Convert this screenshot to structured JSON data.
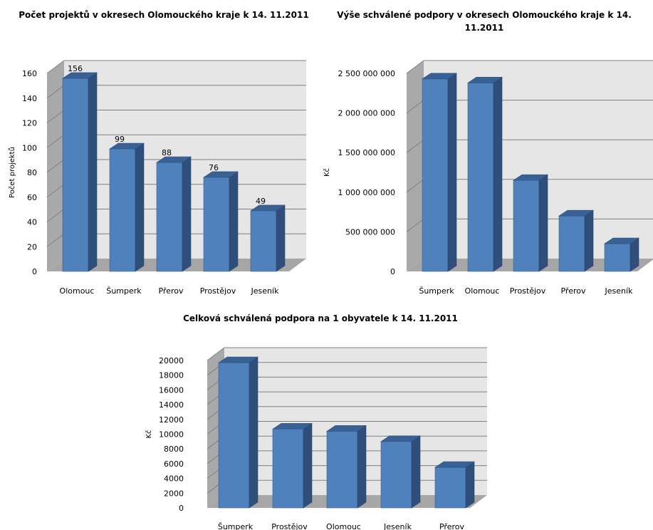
{
  "chart_data": [
    {
      "type": "bar",
      "title": "Počet projektů v okresech Olomouckého kraje k 14. 11.2011",
      "categories": [
        "Olomouc",
        "Šumperk",
        "Přerov",
        "Prostějov",
        "Jeseník"
      ],
      "values": [
        156,
        99,
        88,
        76,
        49
      ],
      "data_labels": [
        "156",
        "99",
        "88",
        "76",
        "49"
      ],
      "ylabel": "Počet projektů",
      "xlabel": "",
      "ylim": [
        0,
        160
      ],
      "yticks": [
        0,
        20,
        40,
        60,
        80,
        100,
        120,
        140,
        160
      ],
      "ytick_labels": [
        "0",
        "20",
        "40",
        "60",
        "80",
        "100",
        "120",
        "140",
        "160"
      ],
      "grid": true,
      "style": "3d-column",
      "bar_color": "#4f81bd",
      "legend": "none"
    },
    {
      "type": "bar",
      "title": "Výše schválené podpory v okresech Olomouckého kraje k 14. 11.2011",
      "categories": [
        "Šumperk",
        "Olomouc",
        "Prostějov",
        "Přerov",
        "Jeseník"
      ],
      "values": [
        2430000000,
        2380000000,
        1150000000,
        700000000,
        350000000
      ],
      "ylabel": "Kč",
      "xlabel": "",
      "ylim": [
        0,
        2500000000
      ],
      "yticks": [
        0,
        500000000,
        1000000000,
        1500000000,
        2000000000,
        2500000000
      ],
      "ytick_labels": [
        "0",
        "500 000 000",
        "1 000 000 000",
        "1 500 000 000",
        "2 000 000 000",
        "2 500 000 000"
      ],
      "grid": true,
      "style": "3d-column",
      "bar_color": "#4f81bd",
      "legend": "none"
    },
    {
      "type": "bar",
      "title": "Celková schválená podpora na 1 obyvatele k 14. 11.2011",
      "categories": [
        "Šumperk",
        "Prostějov",
        "Olomouc",
        "Jeseník",
        "Přerov"
      ],
      "values": [
        19700,
        10700,
        10400,
        9000,
        5500
      ],
      "ylabel": "Kč",
      "xlabel": "",
      "ylim": [
        0,
        20000
      ],
      "yticks": [
        0,
        2000,
        4000,
        6000,
        8000,
        10000,
        12000,
        14000,
        16000,
        18000,
        20000
      ],
      "ytick_labels": [
        "0",
        "2000",
        "4000",
        "6000",
        "8000",
        "10000",
        "12000",
        "14000",
        "16000",
        "18000",
        "20000"
      ],
      "grid": true,
      "style": "3d-column",
      "bar_color": "#4f81bd",
      "legend": "none"
    }
  ]
}
